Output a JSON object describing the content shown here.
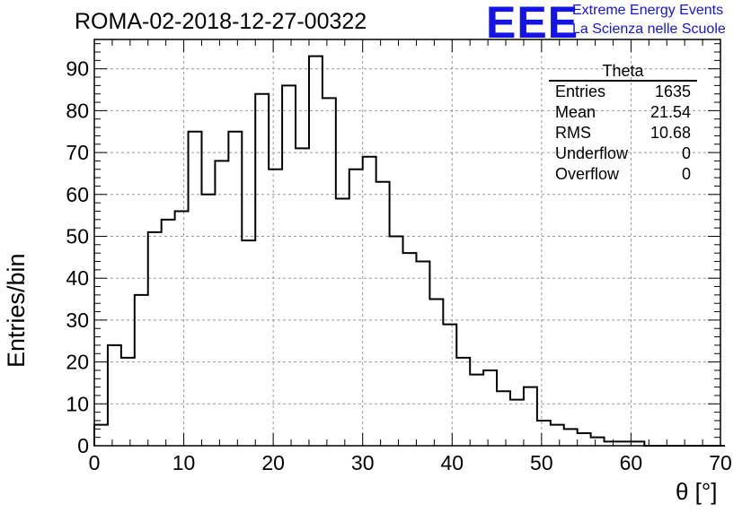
{
  "header": {
    "run_title": "ROMA-02-2018-12-27-00322",
    "logo_text": "EEE",
    "logo_line1": "Extreme Energy Events",
    "logo_line2": "La Scienza nelle Scuole",
    "logo_color": "#1414e6"
  },
  "stats": {
    "title": "Theta",
    "rows": [
      {
        "label": "Entries",
        "value": "1635"
      },
      {
        "label": "Mean",
        "value": "21.54"
      },
      {
        "label": "RMS",
        "value": "10.68"
      },
      {
        "label": "Underflow",
        "value": "0"
      },
      {
        "label": "Overflow",
        "value": "0"
      }
    ]
  },
  "chart_data": {
    "type": "bar",
    "style": "step-histogram",
    "xlabel": "θ [°]",
    "ylabel": "Entries/bin",
    "xlim": [
      0,
      70
    ],
    "ylim": [
      0,
      97
    ],
    "xticks": [
      0,
      10,
      20,
      30,
      40,
      50,
      60,
      70
    ],
    "yticks": [
      0,
      10,
      20,
      30,
      40,
      50,
      60,
      70,
      80,
      90
    ],
    "grid": true,
    "bin_width": 1.5,
    "bin_edges_start": 0,
    "values": [
      5,
      24,
      21,
      36,
      51,
      54,
      56,
      75,
      60,
      68,
      75,
      49,
      84,
      66,
      86,
      71,
      93,
      83,
      59,
      66,
      69,
      63,
      50,
      46,
      44,
      35,
      29,
      21,
      17,
      18,
      13,
      11,
      14,
      6,
      5,
      4,
      3,
      2,
      1,
      1,
      1,
      0,
      0,
      0,
      0,
      0,
      0
    ]
  }
}
